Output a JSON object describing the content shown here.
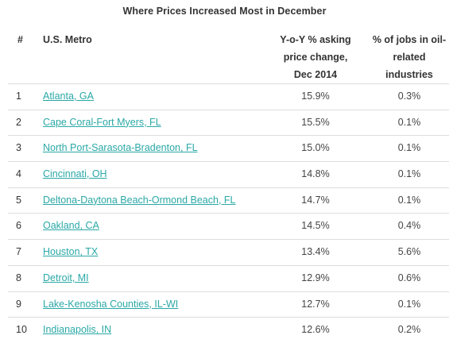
{
  "table": {
    "title": "Where Prices Increased Most in December",
    "headers": {
      "num": "#",
      "metro": "U.S. Metro",
      "yoy_line1": "Y-o-Y % asking",
      "yoy_line2": "price change,",
      "yoy_line3": "Dec 2014",
      "oil_line1": "% of jobs in oil-",
      "oil_line2": "related",
      "oil_line3": "industries"
    },
    "rows": [
      {
        "num": "1",
        "metro": "Atlanta, GA",
        "yoy": "15.9%",
        "oil": "0.3%"
      },
      {
        "num": "2",
        "metro": "Cape Coral-Fort Myers, FL",
        "yoy": "15.5%",
        "oil": "0.1%"
      },
      {
        "num": "3",
        "metro": "North Port-Sarasota-Bradenton, FL",
        "yoy": "15.0%",
        "oil": "0.1%"
      },
      {
        "num": "4",
        "metro": "Cincinnati, OH",
        "yoy": "14.8%",
        "oil": "0.1%"
      },
      {
        "num": "5",
        "metro": "Deltona-Daytona Beach-Ormond Beach, FL",
        "yoy": "14.7%",
        "oil": "0.1%"
      },
      {
        "num": "6",
        "metro": "Oakland, CA",
        "yoy": "14.5%",
        "oil": "0.4%"
      },
      {
        "num": "7",
        "metro": "Houston, TX",
        "yoy": "13.4%",
        "oil": "5.6%"
      },
      {
        "num": "8",
        "metro": "Detroit, MI",
        "yoy": "12.9%",
        "oil": "0.6%"
      },
      {
        "num": "9",
        "metro": "Lake-Kenosha Counties, IL-WI",
        "yoy": "12.7%",
        "oil": "0.1%"
      },
      {
        "num": "10",
        "metro": "Indianapolis, IN",
        "yoy": "12.6%",
        "oil": "0.2%"
      }
    ]
  },
  "colors": {
    "link": "#2aa8a6",
    "text": "#333333",
    "divider": "#dddddd"
  }
}
